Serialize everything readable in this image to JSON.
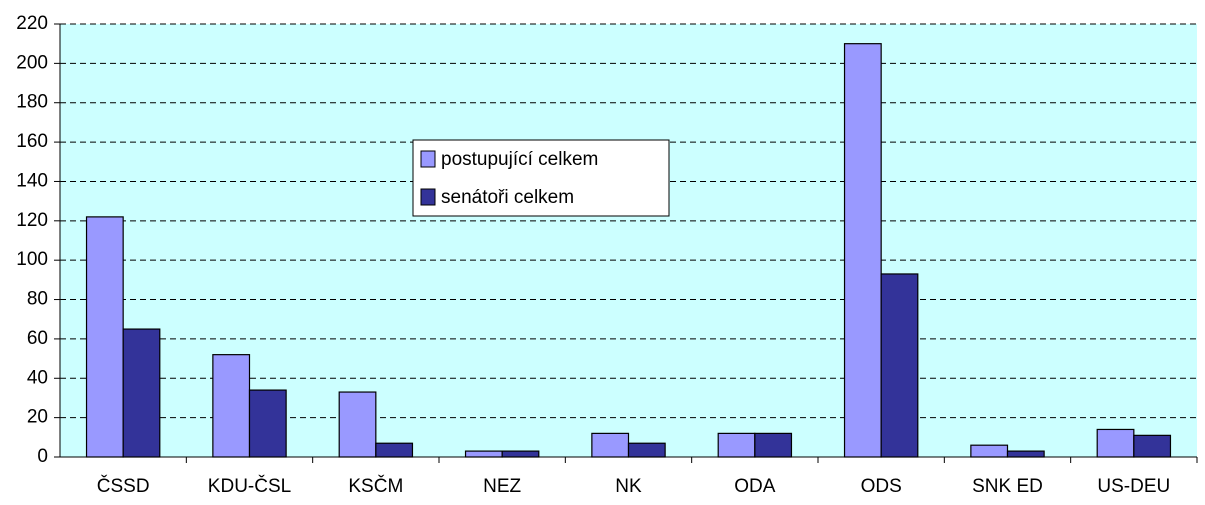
{
  "chart_data": {
    "type": "bar",
    "categories": [
      "ČSSD",
      "KDU-ČSL",
      "KSČM",
      "NEZ",
      "NK",
      "ODA",
      "ODS",
      "SNK ED",
      "US-DEU"
    ],
    "series": [
      {
        "name": "postupující celkem",
        "color": "#9999ff",
        "values": [
          122,
          52,
          33,
          3,
          12,
          12,
          210,
          6,
          14
        ]
      },
      {
        "name": "senátoři celkem",
        "color": "#333399",
        "values": [
          65,
          34,
          7,
          3,
          7,
          12,
          93,
          3,
          11
        ]
      }
    ],
    "ylim": [
      0,
      220
    ],
    "yticks": [
      0,
      20,
      40,
      60,
      80,
      100,
      120,
      140,
      160,
      180,
      200,
      220
    ],
    "grid": true,
    "background": "#ccffff"
  }
}
